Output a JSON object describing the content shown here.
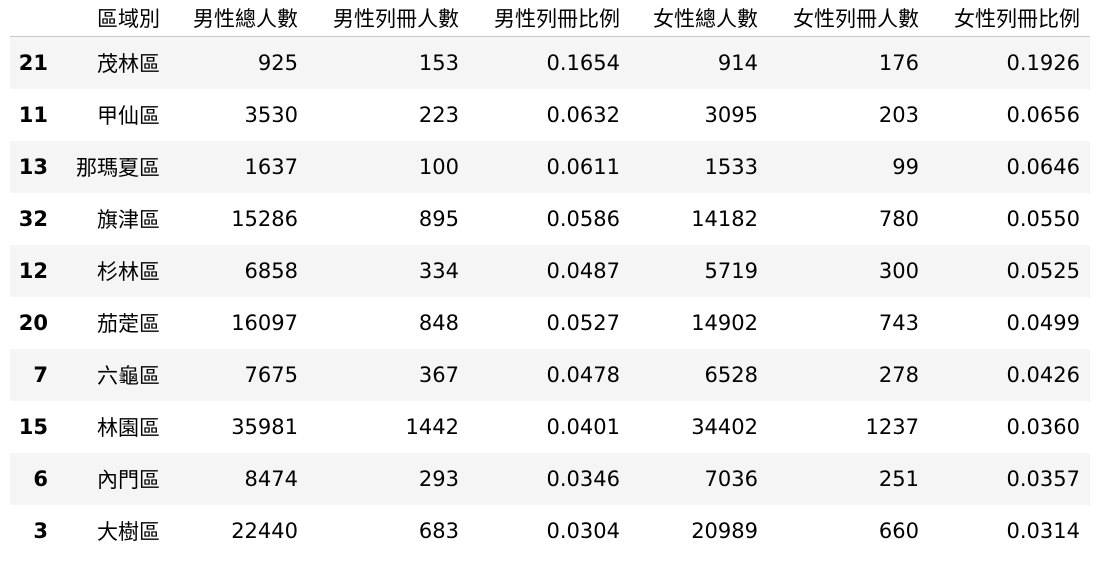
{
  "table": {
    "columns": [
      "區域別",
      "男性總人數",
      "男性列冊人數",
      "男性列冊比例",
      "女性總人數",
      "女性列冊人數",
      "女性列冊比例"
    ],
    "rows": [
      {
        "index": "21",
        "cells": [
          "茂林區",
          "925",
          "153",
          "0.1654",
          "914",
          "176",
          "0.1926"
        ]
      },
      {
        "index": "11",
        "cells": [
          "甲仙區",
          "3530",
          "223",
          "0.0632",
          "3095",
          "203",
          "0.0656"
        ]
      },
      {
        "index": "13",
        "cells": [
          "那瑪夏區",
          "1637",
          "100",
          "0.0611",
          "1533",
          "99",
          "0.0646"
        ]
      },
      {
        "index": "32",
        "cells": [
          "旗津區",
          "15286",
          "895",
          "0.0586",
          "14182",
          "780",
          "0.0550"
        ]
      },
      {
        "index": "12",
        "cells": [
          "杉林區",
          "6858",
          "334",
          "0.0487",
          "5719",
          "300",
          "0.0525"
        ]
      },
      {
        "index": "20",
        "cells": [
          "茄萣區",
          "16097",
          "848",
          "0.0527",
          "14902",
          "743",
          "0.0499"
        ]
      },
      {
        "index": "7",
        "cells": [
          "六龜區",
          "7675",
          "367",
          "0.0478",
          "6528",
          "278",
          "0.0426"
        ]
      },
      {
        "index": "15",
        "cells": [
          "林園區",
          "35981",
          "1442",
          "0.0401",
          "34402",
          "1237",
          "0.0360"
        ]
      },
      {
        "index": "6",
        "cells": [
          "內門區",
          "8474",
          "293",
          "0.0346",
          "7036",
          "251",
          "0.0357"
        ]
      },
      {
        "index": "3",
        "cells": [
          "大樹區",
          "22440",
          "683",
          "0.0304",
          "20989",
          "660",
          "0.0314"
        ]
      }
    ]
  },
  "colors": {
    "stripe": "#f5f5f5",
    "background": "#ffffff",
    "header_rule": "#c8c8c8",
    "text": "#000000"
  }
}
